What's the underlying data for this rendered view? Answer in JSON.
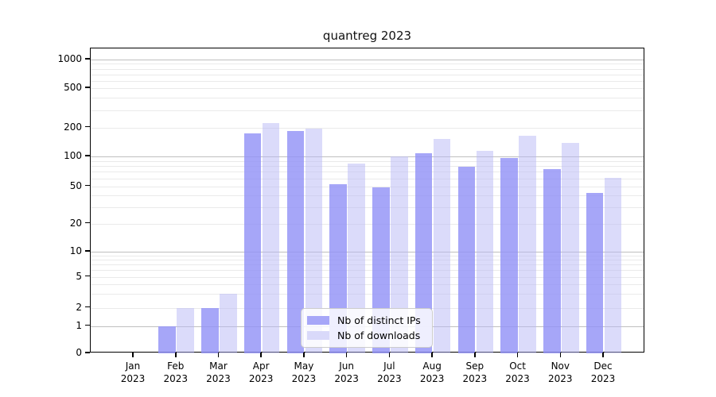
{
  "chart_data": {
    "type": "bar",
    "title": "quantreg 2023",
    "x_categories": [
      "Jan",
      "Feb",
      "Mar",
      "Apr",
      "May",
      "Jun",
      "Jul",
      "Aug",
      "Sep",
      "Oct",
      "Nov",
      "Dec"
    ],
    "x_year": "2023",
    "series": [
      {
        "name": "Nb of distinct IPs",
        "color": "#a7a7f8",
        "fill": "rgba(147,147,247,0.82)",
        "values": [
          0,
          1,
          2,
          172,
          185,
          52,
          49,
          107,
          78,
          96,
          74,
          42
        ]
      },
      {
        "name": "Nb of downloads",
        "color": "#d9d9fa",
        "fill": "rgba(183,183,246,0.5)",
        "values": [
          0,
          2,
          3,
          222,
          196,
          84,
          100,
          152,
          115,
          164,
          139,
          61
        ]
      }
    ],
    "y_axis": {
      "scale": "log-with-zero-baseline",
      "tick_values": [
        0,
        1,
        2,
        5,
        10,
        20,
        50,
        100,
        200,
        500,
        1000
      ],
      "major_gridlines": [
        1,
        10,
        100,
        1000
      ],
      "minor_gridlines": [
        2,
        3,
        4,
        5,
        6,
        7,
        8,
        9,
        20,
        30,
        40,
        50,
        60,
        70,
        80,
        90,
        200,
        300,
        400,
        500,
        600,
        700,
        800,
        900
      ],
      "ylim": [
        0,
        1300
      ]
    },
    "legend": {
      "entries": [
        "Nb of distinct IPs",
        "Nb of downloads"
      ],
      "position": "inside-lower-center"
    },
    "grid": "horizontal major and minor, behind semi-transparent bars",
    "colors": {
      "bar_dark": "#a7a7f8",
      "bar_light": "#d9d9fa",
      "major_grid": "#bfbfbf",
      "minor_grid": "#eaeaea",
      "spine": "#000000",
      "background": "#ffffff"
    }
  }
}
